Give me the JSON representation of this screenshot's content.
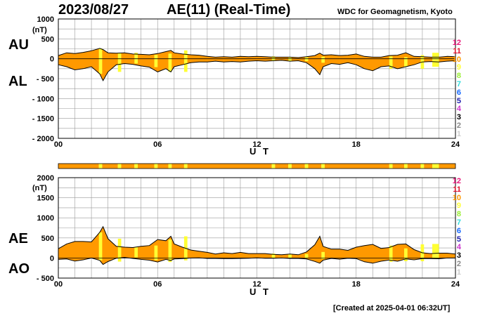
{
  "header": {
    "date": "2023/08/27",
    "title": "AE(11) (Real-Time)",
    "institution": "WDC for Geomagnetism, Kyoto"
  },
  "footer": {
    "created": "[Created at 2025-04-01 06:32UT]"
  },
  "legend_levels": [
    {
      "label": "12",
      "color": "#e8177a"
    },
    {
      "label": "11",
      "color": "#e0102a"
    },
    {
      "label": "10",
      "color": "#ff9900"
    },
    {
      "label": "9",
      "color": "#ffff33"
    },
    {
      "label": "8",
      "color": "#99ee33"
    },
    {
      "label": "7",
      "color": "#33dddd"
    },
    {
      "label": "6",
      "color": "#1166ff"
    },
    {
      "label": "5",
      "color": "#1a1aaa"
    },
    {
      "label": "4",
      "color": "#cc33cc"
    },
    {
      "label": "3",
      "color": "#000000"
    },
    {
      "label": "2",
      "color": "#888888"
    },
    {
      "label": "1",
      "color": "#cccccc"
    }
  ],
  "colors": {
    "fill": "#ff9900",
    "highlight": "#ffff33",
    "line": "#000000",
    "grid": "#999999"
  },
  "chart_data": [
    {
      "type": "area",
      "panel": "AU/AL",
      "left_labels": [
        "AU",
        "AL"
      ],
      "ylabel": "(nT)",
      "xlabel": "U T",
      "xlim": [
        0,
        24
      ],
      "ylim": [
        -2000,
        1000
      ],
      "x_ticks": [
        "00",
        "06",
        "12",
        "18",
        "24"
      ],
      "y_ticks": [
        "1000",
        "500",
        "0",
        "- 500",
        "- 1000",
        "- 1500",
        "- 2000"
      ],
      "grid": true,
      "x": [
        0,
        0.5,
        1,
        1.5,
        2,
        2.5,
        2.7,
        3,
        3.5,
        4,
        4.5,
        5,
        5.5,
        6,
        6.5,
        6.8,
        7,
        7.5,
        8,
        8.5,
        9,
        9.5,
        10,
        10.5,
        11,
        11.5,
        12,
        12.5,
        13,
        13.5,
        14,
        14.5,
        15,
        15.5,
        15.8,
        16,
        16.5,
        17,
        17.5,
        18,
        18.5,
        19,
        19.5,
        20,
        20.5,
        21,
        21.5,
        22,
        22.5,
        23,
        23.5,
        24
      ],
      "series": [
        {
          "name": "AU",
          "values": [
            80,
            150,
            130,
            160,
            200,
            260,
            230,
            150,
            140,
            150,
            120,
            110,
            100,
            130,
            180,
            210,
            150,
            120,
            100,
            90,
            60,
            40,
            50,
            40,
            60,
            50,
            60,
            50,
            40,
            40,
            40,
            30,
            50,
            80,
            140,
            90,
            100,
            80,
            90,
            120,
            60,
            40,
            40,
            80,
            90,
            150,
            60,
            50,
            40,
            40,
            60,
            50
          ]
        },
        {
          "name": "AL",
          "values": [
            -150,
            -200,
            -280,
            -250,
            -200,
            -380,
            -550,
            -330,
            -150,
            -120,
            -140,
            -180,
            -210,
            -330,
            -250,
            -330,
            -200,
            -150,
            -100,
            -80,
            -80,
            -60,
            -80,
            -70,
            -80,
            -60,
            -50,
            -60,
            -50,
            -40,
            -60,
            -50,
            -100,
            -250,
            -400,
            -200,
            -120,
            -140,
            -100,
            -150,
            -250,
            -300,
            -200,
            -180,
            -250,
            -200,
            -150,
            -80,
            -70,
            -80,
            -60,
            -50
          ]
        }
      ]
    },
    {
      "type": "area",
      "panel": "AE/AO",
      "left_labels": [
        "AE",
        "AO"
      ],
      "ylabel": "(nT)",
      "xlabel": "U T",
      "xlim": [
        0,
        24
      ],
      "ylim": [
        -500,
        2000
      ],
      "x_ticks": [
        "00",
        "06",
        "12",
        "18",
        "24"
      ],
      "y_ticks": [
        "2000",
        "1500",
        "1000",
        "500",
        "0",
        "- 500"
      ],
      "grid": true,
      "x": [
        0,
        0.5,
        1,
        1.5,
        2,
        2.5,
        2.7,
        3,
        3.5,
        4,
        4.5,
        5,
        5.5,
        6,
        6.5,
        6.8,
        7,
        7.5,
        8,
        8.5,
        9,
        9.5,
        10,
        10.5,
        11,
        11.5,
        12,
        12.5,
        13,
        13.5,
        14,
        14.5,
        15,
        15.5,
        15.8,
        16,
        16.5,
        17,
        17.5,
        18,
        18.5,
        19,
        19.5,
        20,
        20.5,
        21,
        21.5,
        22,
        22.5,
        23,
        23.5,
        24
      ],
      "series": [
        {
          "name": "AE",
          "values": [
            230,
            350,
            410,
            410,
            400,
            640,
            780,
            480,
            290,
            270,
            260,
            290,
            310,
            460,
            430,
            540,
            350,
            270,
            200,
            170,
            140,
            100,
            130,
            110,
            140,
            110,
            110,
            110,
            90,
            80,
            100,
            80,
            150,
            330,
            540,
            290,
            220,
            220,
            190,
            270,
            310,
            340,
            240,
            260,
            340,
            350,
            210,
            130,
            110,
            120,
            120,
            100
          ]
        },
        {
          "name": "AO",
          "values": [
            -35,
            -25,
            -75,
            -45,
            0,
            -60,
            -160,
            -90,
            -5,
            15,
            -10,
            -35,
            -55,
            -100,
            -35,
            -60,
            -25,
            -15,
            0,
            5,
            -10,
            -10,
            -15,
            -15,
            -10,
            -5,
            5,
            -5,
            -5,
            0,
            -10,
            -10,
            -25,
            -85,
            -130,
            -55,
            -10,
            -30,
            -5,
            -15,
            -95,
            -130,
            -80,
            -50,
            -80,
            -25,
            -45,
            -15,
            -15,
            -20,
            0,
            0
          ]
        }
      ]
    }
  ],
  "level_bar": {
    "type": "bar",
    "segments": [
      {
        "start": 0,
        "end": 2.45,
        "level": "10"
      },
      {
        "start": 2.45,
        "end": 2.65,
        "level": "9"
      },
      {
        "start": 2.65,
        "end": 3.6,
        "level": "10"
      },
      {
        "start": 3.6,
        "end": 3.8,
        "level": "9"
      },
      {
        "start": 3.8,
        "end": 4.6,
        "level": "10"
      },
      {
        "start": 4.6,
        "end": 4.8,
        "level": "9"
      },
      {
        "start": 4.8,
        "end": 5.8,
        "level": "10"
      },
      {
        "start": 5.8,
        "end": 6.0,
        "level": "9"
      },
      {
        "start": 6.0,
        "end": 6.65,
        "level": "10"
      },
      {
        "start": 6.65,
        "end": 6.85,
        "level": "9"
      },
      {
        "start": 6.85,
        "end": 7.6,
        "level": "10"
      },
      {
        "start": 7.6,
        "end": 7.8,
        "level": "9"
      },
      {
        "start": 7.8,
        "end": 12.9,
        "level": "10"
      },
      {
        "start": 12.9,
        "end": 13.1,
        "level": "9"
      },
      {
        "start": 13.1,
        "end": 13.9,
        "level": "10"
      },
      {
        "start": 13.9,
        "end": 14.1,
        "level": "9"
      },
      {
        "start": 14.1,
        "end": 14.9,
        "level": "10"
      },
      {
        "start": 14.9,
        "end": 15.1,
        "level": "9"
      },
      {
        "start": 15.1,
        "end": 15.9,
        "level": "10"
      },
      {
        "start": 15.9,
        "end": 16.1,
        "level": "9"
      },
      {
        "start": 16.1,
        "end": 20.0,
        "level": "10"
      },
      {
        "start": 20.0,
        "end": 20.2,
        "level": "9"
      },
      {
        "start": 20.2,
        "end": 20.9,
        "level": "10"
      },
      {
        "start": 20.9,
        "end": 21.1,
        "level": "9"
      },
      {
        "start": 21.1,
        "end": 21.9,
        "level": "10"
      },
      {
        "start": 21.9,
        "end": 22.1,
        "level": "9"
      },
      {
        "start": 22.1,
        "end": 22.6,
        "level": "10"
      },
      {
        "start": 22.6,
        "end": 23.0,
        "level": "9"
      },
      {
        "start": 23.0,
        "end": 24,
        "level": "10"
      }
    ]
  }
}
